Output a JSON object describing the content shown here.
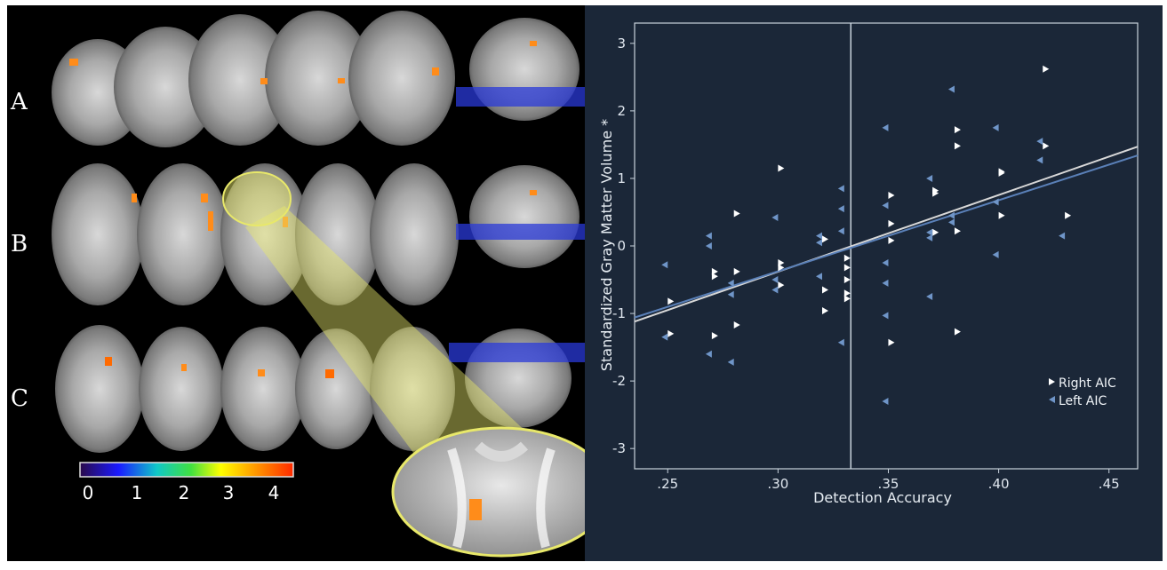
{
  "figure": {
    "row_labels": [
      "A",
      "B",
      "C"
    ],
    "colorbar": {
      "tick_labels": [
        "0",
        "1",
        "2",
        "3",
        "4"
      ],
      "colors": [
        "#2a0a4a",
        "#1a1aff",
        "#10c8c8",
        "#40e040",
        "#ffff00",
        "#ff9a00",
        "#ff2a00"
      ]
    },
    "accent": {
      "panel_bg": "#000000",
      "chart_bg": "#1b2738",
      "highlight": "#e8e86a",
      "activation": "#ff8c1a"
    }
  },
  "chart_data": {
    "type": "scatter",
    "xlabel": "Detection Accuracy",
    "ylabel": "Standardized Gray Matter Volume *",
    "xlim": [
      0.235,
      0.463
    ],
    "ylim": [
      -3.3,
      3.3
    ],
    "xticks": [
      0.25,
      0.3,
      0.35,
      0.4,
      0.45
    ],
    "xtick_labels": [
      ".25",
      ".30",
      ".35",
      ".40",
      ".45"
    ],
    "yticks": [
      3,
      2,
      1,
      0,
      -1,
      -2,
      -3
    ],
    "ytick_labels": [
      "3",
      "2",
      "1",
      "0",
      "-1",
      "-2",
      "-3"
    ],
    "reference_line_x": 0.333,
    "legend_position": "bottom-right",
    "series": [
      {
        "name": "Right AIC",
        "marker": "triangle-right",
        "color": "#ffffff",
        "points": [
          [
            0.25,
            -0.82
          ],
          [
            0.25,
            -1.3
          ],
          [
            0.27,
            -0.38
          ],
          [
            0.27,
            -0.45
          ],
          [
            0.27,
            -1.33
          ],
          [
            0.28,
            0.48
          ],
          [
            0.28,
            -0.38
          ],
          [
            0.28,
            -1.17
          ],
          [
            0.3,
            1.15
          ],
          [
            0.3,
            -0.25
          ],
          [
            0.3,
            -0.32
          ],
          [
            0.3,
            -0.58
          ],
          [
            0.32,
            0.1
          ],
          [
            0.32,
            -0.65
          ],
          [
            0.32,
            -0.96
          ],
          [
            0.33,
            -0.18
          ],
          [
            0.33,
            -0.5
          ],
          [
            0.33,
            -0.7
          ],
          [
            0.33,
            -0.78
          ],
          [
            0.33,
            -0.32
          ],
          [
            0.35,
            0.75
          ],
          [
            0.35,
            0.33
          ],
          [
            0.35,
            0.08
          ],
          [
            0.35,
            -1.43
          ],
          [
            0.37,
            0.82
          ],
          [
            0.37,
            0.78
          ],
          [
            0.37,
            0.2
          ],
          [
            0.38,
            1.72
          ],
          [
            0.38,
            1.48
          ],
          [
            0.38,
            0.22
          ],
          [
            0.38,
            -1.27
          ],
          [
            0.4,
            1.1
          ],
          [
            0.4,
            1.08
          ],
          [
            0.4,
            0.45
          ],
          [
            0.42,
            2.62
          ],
          [
            0.42,
            1.48
          ],
          [
            0.43,
            0.45
          ]
        ]
      },
      {
        "name": "Left AIC",
        "marker": "triangle-left",
        "color": "#6f95c8",
        "points": [
          [
            0.25,
            -0.28
          ],
          [
            0.25,
            -1.35
          ],
          [
            0.27,
            0.15
          ],
          [
            0.27,
            0.0
          ],
          [
            0.27,
            -1.6
          ],
          [
            0.28,
            -0.55
          ],
          [
            0.28,
            -0.72
          ],
          [
            0.28,
            -1.72
          ],
          [
            0.3,
            0.42
          ],
          [
            0.3,
            -0.5
          ],
          [
            0.3,
            -0.65
          ],
          [
            0.32,
            0.15
          ],
          [
            0.32,
            0.05
          ],
          [
            0.32,
            -0.45
          ],
          [
            0.33,
            0.85
          ],
          [
            0.33,
            0.55
          ],
          [
            0.33,
            0.22
          ],
          [
            0.33,
            -1.43
          ],
          [
            0.35,
            1.75
          ],
          [
            0.35,
            0.6
          ],
          [
            0.35,
            -0.25
          ],
          [
            0.35,
            -0.55
          ],
          [
            0.35,
            -1.03
          ],
          [
            0.35,
            -2.3
          ],
          [
            0.37,
            1.0
          ],
          [
            0.37,
            0.2
          ],
          [
            0.37,
            0.12
          ],
          [
            0.37,
            -0.75
          ],
          [
            0.38,
            2.32
          ],
          [
            0.38,
            0.45
          ],
          [
            0.38,
            0.35
          ],
          [
            0.4,
            1.75
          ],
          [
            0.4,
            0.65
          ],
          [
            0.4,
            -0.13
          ],
          [
            0.42,
            1.55
          ],
          [
            0.42,
            1.27
          ],
          [
            0.43,
            0.15
          ]
        ]
      }
    ],
    "fit_lines": [
      {
        "series": "Right AIC",
        "color": "#d8d8d8",
        "from": [
          0.235,
          -1.12
        ],
        "to": [
          0.463,
          1.47
        ]
      },
      {
        "series": "Left AIC",
        "color": "#5a80b8",
        "from": [
          0.235,
          -1.06
        ],
        "to": [
          0.463,
          1.34
        ]
      }
    ]
  }
}
